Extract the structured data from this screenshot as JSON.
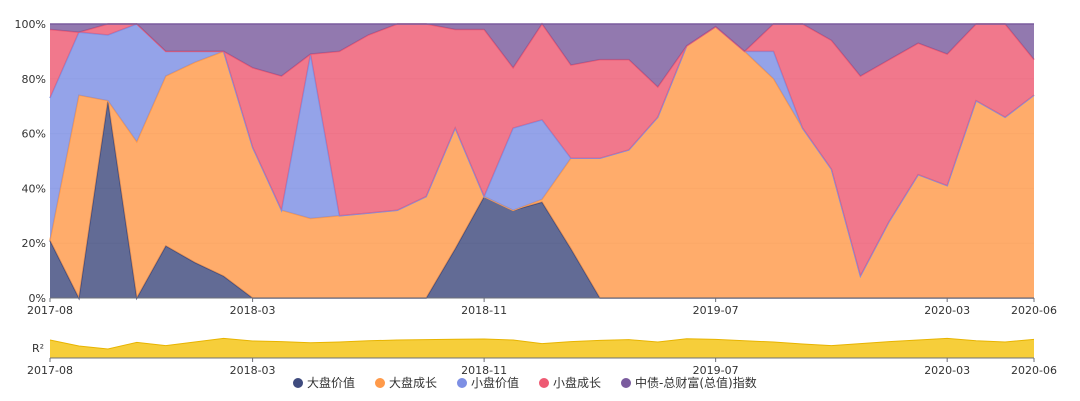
{
  "chart_data": {
    "type": "area",
    "stacked": true,
    "normalized": true,
    "grid": true,
    "legend_position": "bottom",
    "x": [
      "2017-08",
      "2017-09",
      "2017-10",
      "2017-11",
      "2017-12",
      "2018-01",
      "2018-02",
      "2018-03",
      "2018-04",
      "2018-05",
      "2018-06",
      "2018-07",
      "2018-08",
      "2018-09",
      "2018-10",
      "2018-11",
      "2018-12",
      "2019-01",
      "2019-02",
      "2019-03",
      "2019-04",
      "2019-05",
      "2019-06",
      "2019-07",
      "2019-08",
      "2019-09",
      "2019-10",
      "2019-11",
      "2019-12",
      "2020-01",
      "2020-02",
      "2020-03",
      "2020-04",
      "2020-05",
      "2020-06"
    ],
    "x_tick_labels": [
      "2017-08",
      "2018-03",
      "2018-11",
      "2019-07",
      "2020-03",
      "2020-06"
    ],
    "y_tick_labels": [
      "0%",
      "20%",
      "40%",
      "60%",
      "80%",
      "100%"
    ],
    "ylim": [
      0,
      100
    ],
    "series": [
      {
        "name": "大盘价值",
        "color": "#3f4b7e",
        "values": [
          21,
          0,
          72,
          0,
          19,
          13,
          8,
          0,
          0,
          0,
          0,
          0,
          0,
          0,
          18,
          37,
          32,
          35,
          18,
          0,
          0,
          0,
          0,
          0,
          0,
          0,
          0,
          0,
          0,
          0,
          0,
          0,
          0,
          0,
          0
        ]
      },
      {
        "name": "大盘成长",
        "color": "#ff9a4a",
        "values": [
          0,
          74,
          0,
          57,
          62,
          73,
          82,
          55,
          32,
          29,
          30,
          31,
          32,
          37,
          44,
          0,
          0,
          1,
          33,
          51,
          54,
          66,
          92,
          99,
          90,
          80,
          62,
          47,
          8,
          28,
          45,
          41,
          72,
          66,
          74
        ]
      },
      {
        "name": "小盘价值",
        "color": "#7d8fe4",
        "values": [
          52,
          23,
          24,
          43,
          9,
          4,
          0,
          0,
          0,
          60,
          0,
          0,
          0,
          0,
          0,
          0,
          30,
          29,
          0,
          0,
          0,
          0,
          0,
          0,
          0,
          10,
          0,
          0,
          0,
          0,
          0,
          0,
          0,
          0,
          0
        ]
      },
      {
        "name": "小盘成长",
        "color": "#ee5a73",
        "values": [
          25,
          0,
          4,
          0,
          0,
          0,
          0,
          29,
          49,
          0,
          60,
          65,
          68,
          63,
          36,
          61,
          22,
          35,
          34,
          36,
          33,
          11,
          0,
          0,
          0,
          10,
          38,
          47,
          73,
          59,
          48,
          48,
          28,
          34,
          13
        ]
      },
      {
        "name": "中债-总财富(总值)指数",
        "color": "#7a5b9e",
        "values": [
          2,
          3,
          0,
          0,
          10,
          10,
          10,
          16,
          19,
          11,
          10,
          4,
          0,
          0,
          2,
          2,
          16,
          0,
          15,
          13,
          13,
          23,
          8,
          1,
          10,
          0,
          0,
          6,
          19,
          13,
          7,
          11,
          0,
          0,
          13
        ]
      }
    ],
    "r2_panel": {
      "label": "R²",
      "color": "#f5c518",
      "values": [
        0.9,
        0.6,
        0.45,
        0.78,
        0.62,
        0.8,
        0.98,
        0.85,
        0.82,
        0.76,
        0.8,
        0.86,
        0.9,
        0.92,
        0.94,
        0.95,
        0.9,
        0.72,
        0.82,
        0.88,
        0.92,
        0.8,
        0.96,
        0.93,
        0.86,
        0.8,
        0.7,
        0.62,
        0.72,
        0.82,
        0.9,
        0.98,
        0.86,
        0.8,
        0.93
      ]
    }
  }
}
